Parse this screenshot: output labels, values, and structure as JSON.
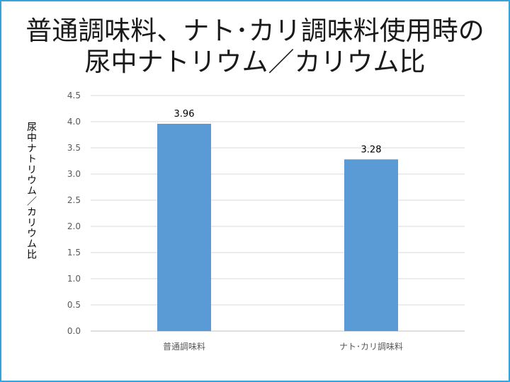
{
  "title_line1": "普通調味料、ナト･カリ調味料使用時の",
  "title_line2": "尿中ナトリウム／カリウム比",
  "colors": {
    "bar": "#5b9bd5",
    "border": "#35a4d6",
    "grid": "#d9d9d9"
  },
  "chart_data": {
    "type": "bar",
    "title": "普通調味料、ナト･カリ調味料使用時の尿中ナトリウム／カリウム比",
    "ylabel": "尿中ナトリウム／カリウム比",
    "xlabel": "",
    "categories": [
      "普通調味料",
      "ナト･カリ調味料"
    ],
    "values": [
      3.96,
      3.28
    ],
    "data_labels": [
      "3.96",
      "3.28"
    ],
    "ylim": [
      0,
      4.5
    ],
    "yticks": [
      "0.0",
      "0.5",
      "1.0",
      "1.5",
      "2.0",
      "2.5",
      "3.0",
      "3.5",
      "4.0",
      "4.5"
    ],
    "grid": true,
    "legend": "none"
  }
}
